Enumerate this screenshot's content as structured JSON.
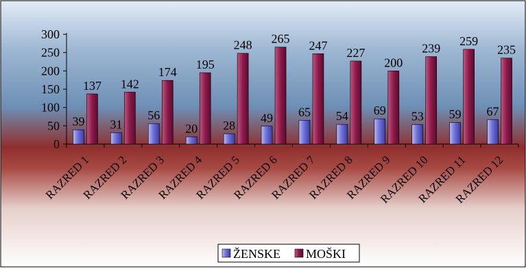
{
  "chart_data": {
    "type": "bar",
    "categories": [
      "RAZRED 1",
      "RAZRED 2",
      "RAZRED 3",
      "RAZRED 4",
      "RAZRED 5",
      "RAZRED 6",
      "RAZRED 7",
      "RAZRED 8",
      "RAZRED 9",
      "RAZRED 10",
      "RAZRED 11",
      "RAZRED 12"
    ],
    "series": [
      {
        "name": "ŽENSKE",
        "values": [
          39,
          31,
          56,
          20,
          28,
          49,
          65,
          54,
          69,
          53,
          59,
          67
        ],
        "color": "#6f72d8"
      },
      {
        "name": "MOŠKI",
        "values": [
          137,
          142,
          174,
          195,
          248,
          265,
          247,
          227,
          200,
          239,
          259,
          235
        ],
        "color": "#8b1a4a"
      }
    ],
    "yticks": [
      0,
      50,
      100,
      150,
      200,
      250,
      300
    ],
    "ylim": [
      0,
      300
    ],
    "grid": false,
    "data_labels": true,
    "legend_position": "bottom"
  }
}
